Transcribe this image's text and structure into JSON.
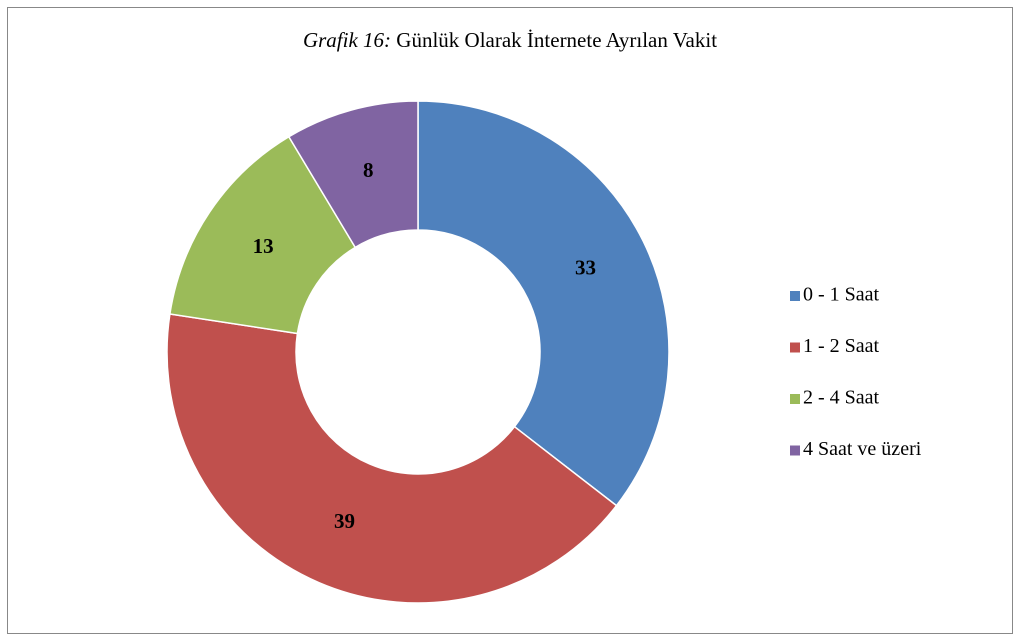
{
  "chart_data": {
    "type": "donut",
    "title": [
      "Grafik 16:",
      "Günlük Olarak İnternete Ayrılan Vakit"
    ],
    "categories": [
      "0 - 1 Saat",
      "1 - 2 Saat",
      "2 - 4 Saat",
      "4 Saat ve üzeri"
    ],
    "values": [
      33,
      39,
      13,
      8
    ],
    "colors": [
      "#4f81bd",
      "#c0504d",
      "#9bbb59",
      "#8064a2"
    ],
    "legend": "right"
  }
}
